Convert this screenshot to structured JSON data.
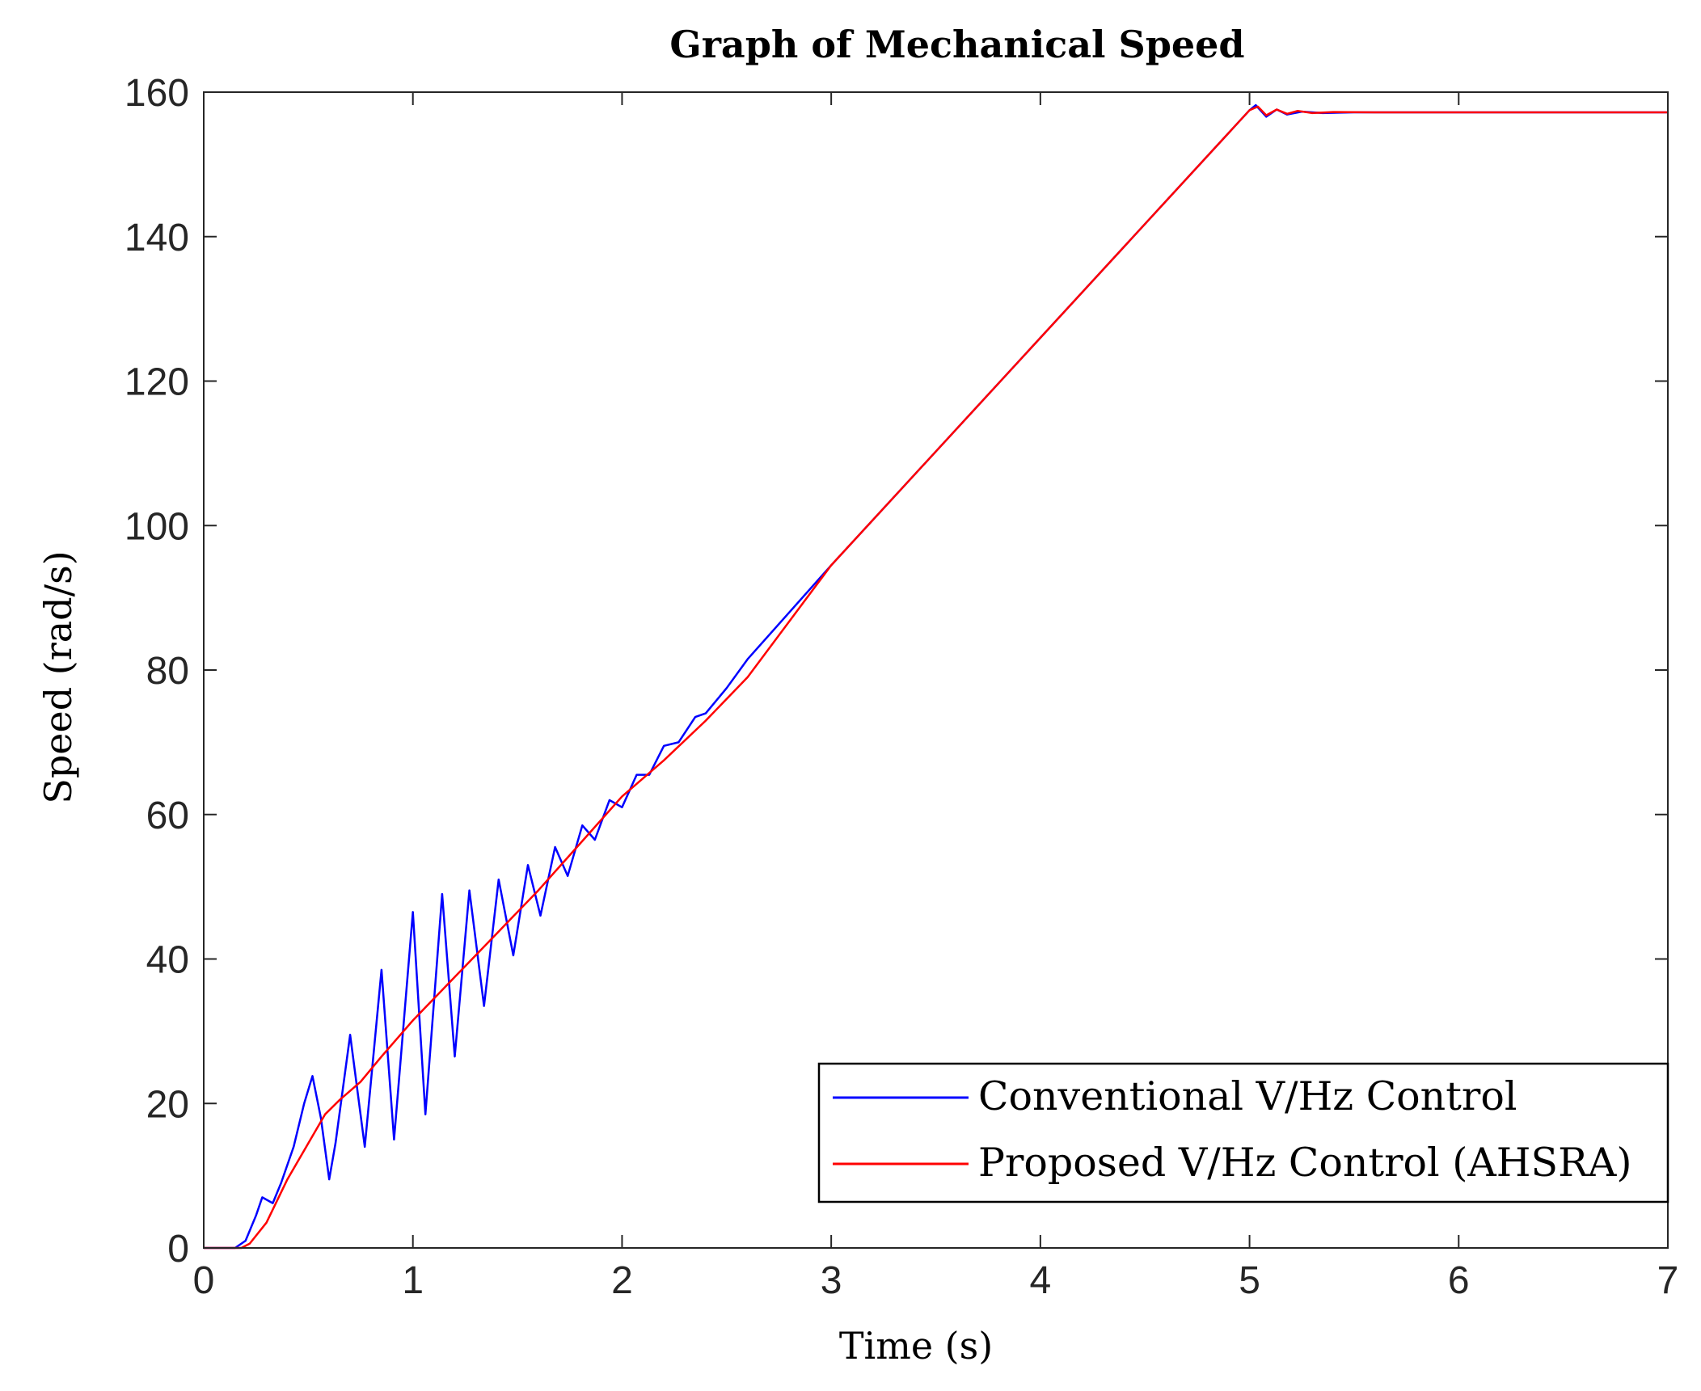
{
  "chart_data": {
    "type": "line",
    "title": "Graph of Mechanical Speed",
    "xlabel": "Time (s)",
    "ylabel": "Speed (rad/s)",
    "xlim": [
      0,
      7
    ],
    "ylim": [
      0,
      160
    ],
    "xticks": [
      0,
      1,
      2,
      3,
      4,
      5,
      6,
      7
    ],
    "yticks": [
      0,
      20,
      40,
      60,
      80,
      100,
      120,
      140,
      160
    ],
    "grid": false,
    "legend_position": "bottom-right",
    "series": [
      {
        "name": "Conventional V/Hz Control",
        "color": "#0000ff",
        "x": [
          0,
          0.15,
          0.2,
          0.25,
          0.28,
          0.33,
          0.37,
          0.43,
          0.48,
          0.52,
          0.56,
          0.6,
          0.63,
          0.7,
          0.77,
          0.85,
          0.91,
          1.0,
          1.06,
          1.14,
          1.2,
          1.27,
          1.34,
          1.41,
          1.48,
          1.55,
          1.61,
          1.68,
          1.74,
          1.81,
          1.87,
          1.94,
          2.0,
          2.07,
          2.13,
          2.2,
          2.27,
          2.35,
          2.4,
          2.5,
          2.6,
          3.0,
          4.0,
          5.0,
          5.03,
          5.08,
          5.13,
          5.18,
          5.25,
          5.35,
          5.5,
          6.0,
          7.0
        ],
        "values": [
          0,
          0,
          1,
          4.5,
          7,
          6.2,
          9,
          14,
          20,
          23.8,
          18,
          9.5,
          14.5,
          29.5,
          14,
          38.5,
          15,
          46.5,
          18.5,
          49,
          26.5,
          49.5,
          33.5,
          51,
          40.5,
          53,
          46,
          55.5,
          51.5,
          58.5,
          56.5,
          62,
          61,
          65.5,
          65.5,
          69.5,
          70,
          73.5,
          74,
          77.5,
          81.5,
          94.5,
          126,
          157.5,
          158.2,
          156.6,
          157.6,
          156.9,
          157.3,
          157.1,
          157.2,
          157.2,
          157.2
        ]
      },
      {
        "name": "Proposed V/Hz Control (AHSRA)",
        "color": "#ff0000",
        "x": [
          0,
          0.18,
          0.22,
          0.3,
          0.4,
          0.5,
          0.58,
          0.65,
          0.75,
          0.85,
          1.0,
          1.2,
          1.4,
          1.6,
          1.8,
          2.0,
          2.2,
          2.4,
          2.6,
          3.0,
          4.0,
          5.0,
          5.04,
          5.08,
          5.13,
          5.18,
          5.23,
          5.3,
          5.4,
          5.6,
          6.0,
          7.0
        ],
        "values": [
          0,
          0,
          0.6,
          3.5,
          9.5,
          14.5,
          18.5,
          20.5,
          23,
          26.5,
          31.5,
          37.5,
          43.5,
          49.5,
          56,
          62.5,
          67.5,
          73,
          79,
          94.5,
          126,
          157.5,
          158,
          156.8,
          157.6,
          157,
          157.4,
          157.1,
          157.25,
          157.2,
          157.2,
          157.2
        ]
      }
    ]
  }
}
